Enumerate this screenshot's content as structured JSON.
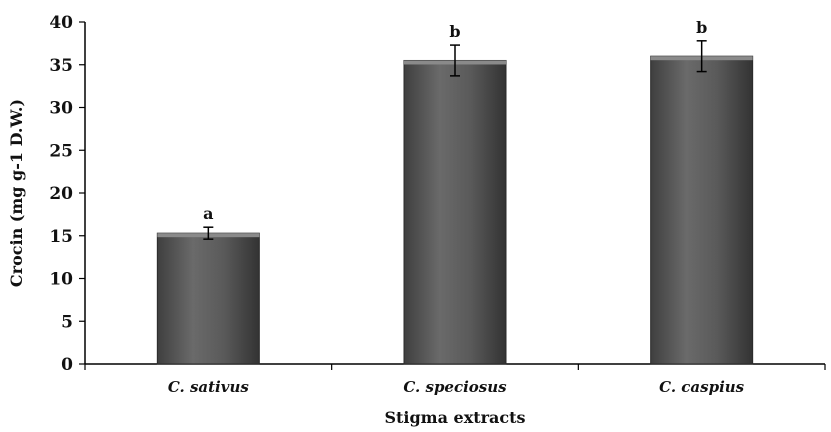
{
  "chart_data": {
    "type": "bar",
    "categories": [
      "C. sativus",
      "C. speciosus",
      "C. caspius"
    ],
    "values": [
      15.3,
      35.5,
      36.0
    ],
    "errors": [
      0.7,
      1.8,
      1.8
    ],
    "significance_labels": [
      "a",
      "b",
      "b"
    ],
    "xlabel": "Stigma extracts",
    "ylabel": "Crocin (mg g-1 D.W.)",
    "ylim": [
      0,
      40
    ],
    "yticks": [
      0,
      5,
      10,
      15,
      20,
      25,
      30,
      35,
      40
    ],
    "grid": false,
    "legend": "none",
    "bar_color": "#555555"
  }
}
